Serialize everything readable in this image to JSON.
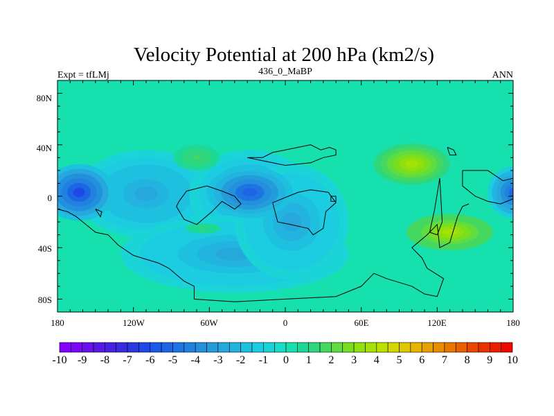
{
  "chart_data": {
    "type": "heatmap",
    "title": "Velocity Potential at 200 hPa (km2/s)",
    "left_string": "Expt = tfLMj",
    "center_string": "436_0_MaBP",
    "right_string": "ANN",
    "x_ticks": [
      "180",
      "120W",
      "60W",
      "0",
      "60E",
      "120E",
      "180"
    ],
    "x_tick_values": [
      -180,
      -120,
      -60,
      0,
      60,
      120,
      180
    ],
    "y_ticks": [
      "80N",
      "40N",
      "0",
      "40S",
      "80S"
    ],
    "y_tick_values": [
      80,
      40,
      0,
      -40,
      -80
    ],
    "xlim": [
      -180,
      180
    ],
    "ylim": [
      -90,
      90
    ],
    "colorbar_labels": [
      "-10",
      "-9",
      "-8",
      "-7",
      "-6",
      "-5",
      "-4",
      "-3",
      "-2",
      "-1",
      "0",
      "1",
      "2",
      "3",
      "4",
      "5",
      "6",
      "7",
      "8",
      "9",
      "10"
    ],
    "colorbar_levels": [
      -10,
      -9.5,
      -9,
      -8.5,
      -8,
      -7.5,
      -7,
      -6.5,
      -6,
      -5.5,
      -5,
      -4.5,
      -4,
      -3.5,
      -3,
      -2.5,
      -2,
      -1.5,
      -1,
      -0.5,
      0,
      0.5,
      1,
      1.5,
      2,
      2.5,
      3,
      3.5,
      4,
      4.5,
      5,
      5.5,
      6,
      6.5,
      7,
      7.5,
      8,
      8.5,
      9,
      9.5,
      10
    ],
    "background_value": 0.3,
    "features": [
      {
        "name": "low-east-pacific",
        "lon": -163,
        "lat": 3,
        "value": -6.2
      },
      {
        "name": "low-atlantic-africa",
        "lon": -28,
        "lat": 3,
        "value": -5.4
      },
      {
        "name": "low-west-pacific-dateline",
        "lon": 180,
        "lat": 3,
        "value": -5.0
      },
      {
        "name": "broad-low-band-pacific",
        "lon": -110,
        "lat": 0,
        "value": -2.8
      },
      {
        "name": "broad-low-south-atlantic",
        "lon": -40,
        "lat": -45,
        "value": -2.5
      },
      {
        "name": "high-north-asia",
        "lon": 100,
        "lat": 25,
        "value": 3.6
      },
      {
        "name": "high-australia",
        "lon": 130,
        "lat": -28,
        "value": 3.9
      },
      {
        "name": "high-north-atlantic",
        "lon": -70,
        "lat": 30,
        "value": 1.6
      }
    ]
  },
  "colors": {
    "colormap": [
      "#8400ff",
      "#7a08f5",
      "#6a10eb",
      "#5a18e6",
      "#4820e0",
      "#3a2be0",
      "#2a38e0",
      "#2048e6",
      "#1a58e8",
      "#1c66e6",
      "#1e74e2",
      "#2082de",
      "#2290dc",
      "#249cda",
      "#26a8dc",
      "#22b4de",
      "#1ec0e0",
      "#1ccce0",
      "#1ad4d8",
      "#18dcc8",
      "#16e0ae",
      "#1ed896",
      "#2ed67e",
      "#44d860",
      "#5edc40",
      "#78de20",
      "#90e010",
      "#a6e206",
      "#bee000",
      "#d4d800",
      "#e0c800",
      "#e6b400",
      "#e6a000",
      "#e88c00",
      "#e87600",
      "#e86000",
      "#ea4800",
      "#ea3200",
      "#ec1e00",
      "#ec0a00"
    ]
  }
}
